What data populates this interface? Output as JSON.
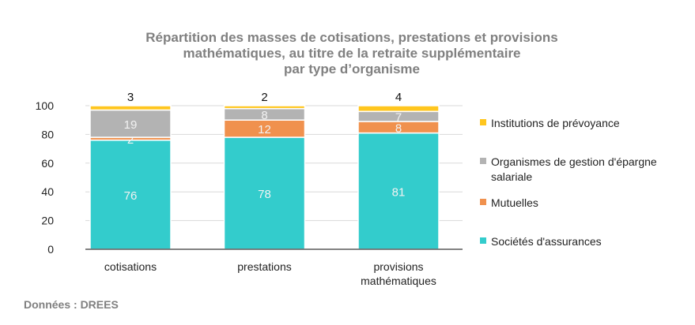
{
  "chart_data": {
    "type": "bar",
    "stacked": true,
    "title": "Répartition des masses de cotisations, prestations et provisions mathématiques, au titre de la retraite supplémentaire par type d’organisme",
    "title_lines": [
      "Répartition des masses de cotisations, prestations et provisions",
      "mathématiques, au titre de la retraite supplémentaire",
      "par type d’organisme"
    ],
    "categories": [
      "cotisations",
      "prestations",
      "provisions mathématiques"
    ],
    "category_lines": [
      [
        "cotisations"
      ],
      [
        "prestations"
      ],
      [
        "provisions",
        "mathématiques"
      ]
    ],
    "series": [
      {
        "name": "Sociétés d'assurances",
        "values": [
          76,
          78,
          81
        ],
        "color": "#33CCCC"
      },
      {
        "name": "Mutuelles",
        "values": [
          2,
          12,
          8
        ],
        "color": "#F0914E"
      },
      {
        "name": "Organismes de gestion d'épargne salariale",
        "name_lines": [
          "Organismes de gestion d'épargne",
          "salariale"
        ],
        "values": [
          19,
          8,
          7
        ],
        "color": "#B3B3B3"
      },
      {
        "name": "Institutions de prévoyance",
        "values": [
          3,
          2,
          4
        ],
        "color": "#FFC61E"
      }
    ],
    "ylim": [
      0,
      100
    ],
    "yticks": [
      0,
      20,
      40,
      60,
      80,
      100
    ],
    "grid": true,
    "legend_position": "right",
    "xlabel": "",
    "ylabel": ""
  },
  "source": "Données : DREES"
}
